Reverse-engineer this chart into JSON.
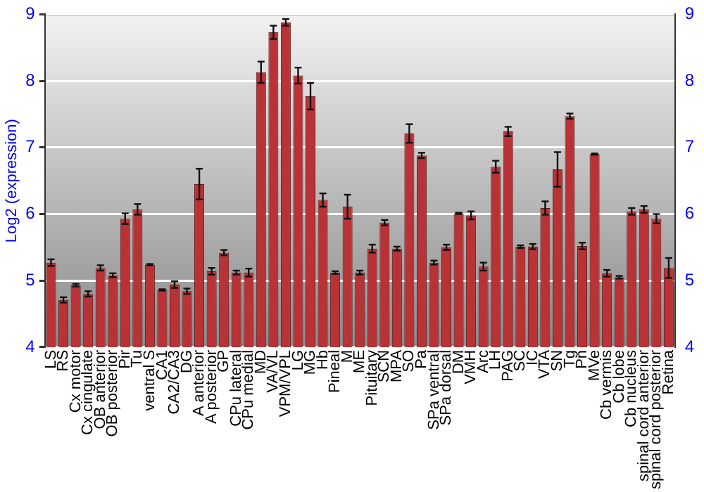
{
  "chart_data": {
    "type": "bar",
    "ylabel": "Log2 (expression)",
    "categories": [
      "LS",
      "RS",
      "Cx motor",
      "Cx cingulate",
      "OB anterior",
      "OB posterior",
      "Pir",
      "Tu",
      "ventral S",
      "CA1",
      "CA2/CA3",
      "DG",
      "A anterior",
      "A posterior",
      "GP",
      "CPu lateral",
      "CPu medial",
      "MD",
      "VA/VL",
      "VPM/VPL",
      "LG",
      "MG",
      "Hb",
      "Pineal",
      "M",
      "ME",
      "Pituitary",
      "SCN",
      "MPA",
      "SO",
      "Pa",
      "SPa ventral",
      "SPa dorsal",
      "DM",
      "VMH",
      "Arc",
      "LH",
      "PAG",
      "SC",
      "IC",
      "VTA",
      "SN",
      "Tg",
      "Pn",
      "MVe",
      "Cb vermis",
      "Cb lobe",
      "Cb nucleus",
      "spinal cord anterior",
      "spinal cord posterior",
      "Retina"
    ],
    "values": [
      5.27,
      4.71,
      4.93,
      4.8,
      5.19,
      5.08,
      5.93,
      6.07,
      5.24,
      4.86,
      4.94,
      4.84,
      6.45,
      5.14,
      5.42,
      5.12,
      5.12,
      8.13,
      8.73,
      8.88,
      8.08,
      7.77,
      6.21,
      5.12,
      6.11,
      5.12,
      5.48,
      5.87,
      5.48,
      7.21,
      6.88,
      5.27,
      5.5,
      6.01,
      5.98,
      5.21,
      6.71,
      7.24,
      5.51,
      5.51,
      6.09,
      6.67,
      7.47,
      5.52,
      6.9,
      5.11,
      5.05,
      6.04,
      6.07,
      5.93,
      5.19
    ],
    "errors": [
      0.05,
      0.04,
      0.02,
      0.04,
      0.04,
      0.03,
      0.08,
      0.08,
      0.01,
      0.01,
      0.05,
      0.04,
      0.23,
      0.05,
      0.04,
      0.03,
      0.06,
      0.16,
      0.1,
      0.05,
      0.12,
      0.2,
      0.1,
      0.02,
      0.18,
      0.03,
      0.06,
      0.04,
      0.03,
      0.14,
      0.04,
      0.03,
      0.04,
      0.01,
      0.06,
      0.06,
      0.09,
      0.07,
      0.02,
      0.04,
      0.1,
      0.26,
      0.04,
      0.05,
      0.01,
      0.05,
      0.02,
      0.05,
      0.05,
      0.07,
      0.15
    ],
    "color": "#b83236",
    "ylim": [
      4,
      9
    ],
    "yticks": [
      4,
      5,
      6,
      7,
      8,
      9
    ],
    "y2lim": [
      4,
      9
    ],
    "y2ticks": [
      4,
      5,
      6,
      7,
      8,
      9
    ],
    "grid": "y"
  }
}
